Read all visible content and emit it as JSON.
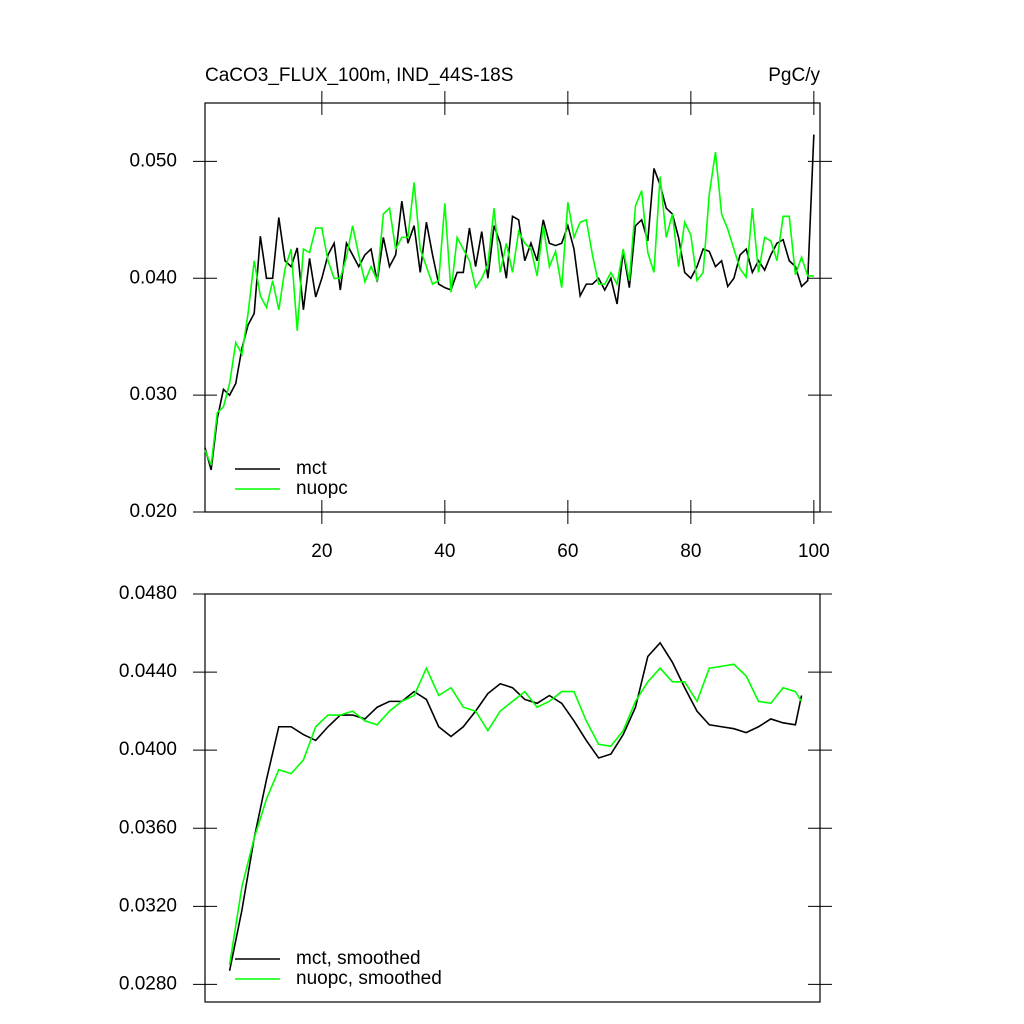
{
  "chart_data": [
    {
      "type": "line",
      "title": "CaCO3_FLUX_100m, IND_44S-18S",
      "units": "PgC/y",
      "x": [
        1,
        2,
        3,
        4,
        5,
        6,
        7,
        8,
        9,
        10,
        11,
        12,
        13,
        14,
        15,
        16,
        17,
        18,
        19,
        20,
        21,
        22,
        23,
        24,
        25,
        26,
        27,
        28,
        29,
        30,
        31,
        32,
        33,
        34,
        35,
        36,
        37,
        38,
        39,
        40,
        41,
        42,
        43,
        44,
        45,
        46,
        47,
        48,
        49,
        50,
        51,
        52,
        53,
        54,
        55,
        56,
        57,
        58,
        59,
        60,
        61,
        62,
        63,
        64,
        65,
        66,
        67,
        68,
        69,
        70,
        71,
        72,
        73,
        74,
        75,
        76,
        77,
        78,
        79,
        80,
        81,
        82,
        83,
        84,
        85,
        86,
        87,
        88,
        89,
        90,
        91,
        92,
        93,
        94,
        95,
        96,
        97,
        98,
        99,
        100
      ],
      "series": [
        {
          "name": "mct",
          "color": "#000000",
          "values": [
            0.0255,
            0.0236,
            0.028,
            0.0305,
            0.03,
            0.031,
            0.034,
            0.036,
            0.037,
            0.0436,
            0.04,
            0.04,
            0.0452,
            0.0415,
            0.041,
            0.0426,
            0.0373,
            0.0417,
            0.0384,
            0.04,
            0.042,
            0.043,
            0.039,
            0.043,
            0.042,
            0.041,
            0.042,
            0.0425,
            0.0397,
            0.0435,
            0.041,
            0.042,
            0.0466,
            0.043,
            0.0445,
            0.0405,
            0.0448,
            0.042,
            0.0395,
            0.0392,
            0.039,
            0.0405,
            0.0405,
            0.0443,
            0.041,
            0.044,
            0.04,
            0.0445,
            0.043,
            0.04,
            0.0453,
            0.045,
            0.0415,
            0.043,
            0.0415,
            0.045,
            0.043,
            0.0428,
            0.043,
            0.0445,
            0.0425,
            0.0385,
            0.0395,
            0.0395,
            0.04,
            0.039,
            0.04,
            0.0378,
            0.0423,
            0.0392,
            0.0445,
            0.045,
            0.0432,
            0.0494,
            0.048,
            0.046,
            0.0455,
            0.0435,
            0.0405,
            0.04,
            0.041,
            0.0425,
            0.0423,
            0.041,
            0.0415,
            0.0393,
            0.04,
            0.042,
            0.0425,
            0.0405,
            0.0415,
            0.0407,
            0.042,
            0.043,
            0.0433,
            0.0415,
            0.041,
            0.0393,
            0.0398,
            0.0523
          ]
        },
        {
          "name": "nuopc",
          "color": "#00ff00",
          "values": [
            0.0253,
            0.024,
            0.0285,
            0.029,
            0.031,
            0.0345,
            0.0335,
            0.037,
            0.0415,
            0.0385,
            0.0375,
            0.0398,
            0.0373,
            0.0408,
            0.0425,
            0.0355,
            0.0425,
            0.0422,
            0.0443,
            0.0443,
            0.0415,
            0.04,
            0.04,
            0.0418,
            0.0445,
            0.042,
            0.0397,
            0.041,
            0.0398,
            0.0455,
            0.046,
            0.0425,
            0.0435,
            0.0435,
            0.0482,
            0.0425,
            0.041,
            0.0395,
            0.0398,
            0.0464,
            0.0388,
            0.0435,
            0.0425,
            0.0415,
            0.0392,
            0.04,
            0.0412,
            0.046,
            0.0405,
            0.043,
            0.0405,
            0.044,
            0.043,
            0.0425,
            0.0402,
            0.0445,
            0.041,
            0.0423,
            0.0392,
            0.0465,
            0.0435,
            0.0448,
            0.045,
            0.042,
            0.0395,
            0.0395,
            0.0405,
            0.0395,
            0.0425,
            0.0398,
            0.0462,
            0.0475,
            0.0422,
            0.0405,
            0.0487,
            0.0435,
            0.0455,
            0.041,
            0.0448,
            0.0437,
            0.0398,
            0.0405,
            0.0472,
            0.0508,
            0.0455,
            0.0442,
            0.0425,
            0.0408,
            0.0401,
            0.046,
            0.0405,
            0.0435,
            0.0432,
            0.0415,
            0.0453,
            0.0453,
            0.0403,
            0.0418,
            0.0402,
            0.0402
          ]
        }
      ],
      "xlim": [
        1,
        101
      ],
      "xticks": [
        20,
        40,
        60,
        80,
        100
      ],
      "ylim": [
        0.02,
        0.055
      ],
      "yticks": [
        {
          "value": 0.02,
          "label": "0.020"
        },
        {
          "value": 0.03,
          "label": "0.030"
        },
        {
          "value": 0.04,
          "label": "0.040"
        },
        {
          "value": 0.05,
          "label": "0.050"
        }
      ],
      "legend": "lower-left"
    },
    {
      "type": "line",
      "x": [
        5,
        7,
        9,
        11,
        13,
        15,
        17,
        19,
        21,
        23,
        25,
        27,
        29,
        31,
        33,
        35,
        37,
        39,
        41,
        43,
        45,
        47,
        49,
        51,
        53,
        55,
        57,
        59,
        61,
        63,
        65,
        67,
        69,
        71,
        73,
        75,
        77,
        79,
        81,
        83,
        85,
        87,
        89,
        91,
        93,
        95,
        97,
        98
      ],
      "series": [
        {
          "name": "mct, smoothed",
          "color": "#000000",
          "values": [
            0.0287,
            0.0318,
            0.0355,
            0.0385,
            0.0412,
            0.0412,
            0.0408,
            0.0405,
            0.0412,
            0.0418,
            0.0418,
            0.0416,
            0.0422,
            0.0425,
            0.0425,
            0.043,
            0.0426,
            0.0412,
            0.0407,
            0.0412,
            0.042,
            0.0429,
            0.0434,
            0.0432,
            0.0426,
            0.0424,
            0.0428,
            0.0424,
            0.0415,
            0.0405,
            0.0396,
            0.0398,
            0.0408,
            0.0422,
            0.0448,
            0.0455,
            0.0445,
            0.0432,
            0.042,
            0.0413,
            0.0412,
            0.0411,
            0.0409,
            0.0412,
            0.0416,
            0.0414,
            0.0413,
            0.0428
          ]
        },
        {
          "name": "nuopc, smoothed",
          "color": "#00ff00",
          "values": [
            0.029,
            0.033,
            0.0355,
            0.0375,
            0.039,
            0.0388,
            0.0395,
            0.0412,
            0.0418,
            0.0418,
            0.042,
            0.0415,
            0.0413,
            0.042,
            0.0425,
            0.0428,
            0.0442,
            0.0428,
            0.0432,
            0.0422,
            0.042,
            0.041,
            0.042,
            0.0425,
            0.043,
            0.0422,
            0.0425,
            0.043,
            0.043,
            0.0415,
            0.0403,
            0.0402,
            0.041,
            0.0425,
            0.0435,
            0.0442,
            0.0435,
            0.0435,
            0.0425,
            0.0442,
            0.0443,
            0.0444,
            0.0438,
            0.0425,
            0.0424,
            0.0432,
            0.043,
            0.0425
          ]
        }
      ],
      "xlim": [
        1,
        101
      ],
      "ylim": [
        0.0271,
        0.048
      ],
      "yticks": [
        {
          "value": 0.028,
          "label": "0.0280"
        },
        {
          "value": 0.032,
          "label": "0.0320"
        },
        {
          "value": 0.036,
          "label": "0.0360"
        },
        {
          "value": 0.04,
          "label": "0.0400"
        },
        {
          "value": 0.044,
          "label": "0.0440"
        },
        {
          "value": 0.048,
          "label": "0.0480"
        }
      ],
      "legend": "lower-left"
    }
  ]
}
